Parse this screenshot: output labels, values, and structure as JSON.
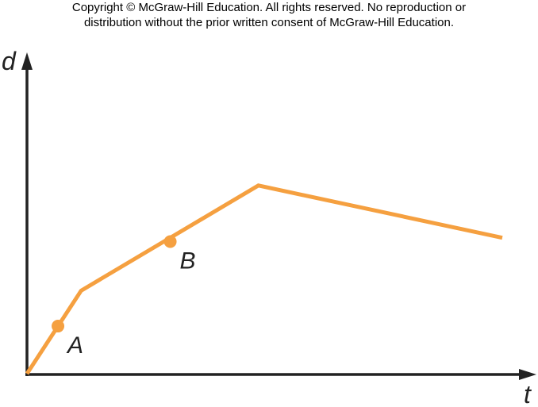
{
  "copyright": {
    "line1": "Copyright © McGraw-Hill Education.  All rights reserved. No reproduction or",
    "line2": "distribution without the prior written consent of McGraw-Hill Education."
  },
  "colors": {
    "line": "#f5a040",
    "axis": "#222222"
  },
  "chart_data": {
    "type": "line",
    "xlabel": "t",
    "ylabel": "d",
    "xlim": [
      0,
      100
    ],
    "ylim": [
      0,
      100
    ],
    "series": [
      {
        "x": [
          0,
          11.2,
          47.8,
          98.2
        ],
        "y": [
          0,
          28.3,
          64.1,
          46.3
        ]
      }
    ],
    "points": [
      {
        "label": "A",
        "x": 6.4,
        "y": 16.2
      },
      {
        "label": "B",
        "x": 29.6,
        "y": 45.0
      }
    ]
  }
}
